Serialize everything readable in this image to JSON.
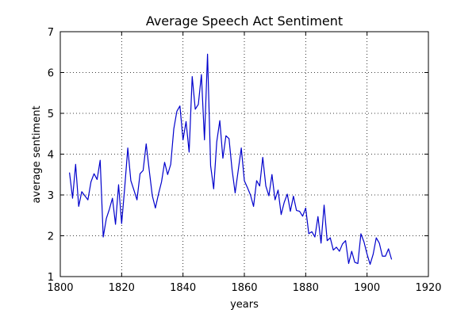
{
  "chart_data": {
    "type": "line",
    "title": "Average Speech Act Sentiment",
    "xlabel": "years",
    "ylabel": "average sentiment",
    "xlim": [
      1800,
      1920
    ],
    "ylim": [
      1,
      7
    ],
    "xticks": [
      1800,
      1820,
      1840,
      1860,
      1880,
      1900,
      1920
    ],
    "yticks": [
      1,
      2,
      3,
      4,
      5,
      6,
      7
    ],
    "x_tick_labels": [
      "1800",
      "1820",
      "1840",
      "1860",
      "1880",
      "1900",
      "1920"
    ],
    "y_tick_labels": [
      "1",
      "2",
      "3",
      "4",
      "5",
      "6",
      "7"
    ],
    "grid": true,
    "grid_style": "dotted",
    "line_color": "#0000cc",
    "series": [
      {
        "x": [
          1803,
          1804,
          1805,
          1806,
          1807,
          1808,
          1809,
          1810,
          1811,
          1812,
          1813,
          1814,
          1815,
          1816,
          1817,
          1818,
          1819,
          1820,
          1821,
          1822,
          1823,
          1824,
          1825,
          1826,
          1827,
          1828,
          1829,
          1830,
          1831,
          1832,
          1833,
          1834,
          1835,
          1836,
          1837,
          1838,
          1839,
          1840,
          1841,
          1842,
          1843,
          1844,
          1845,
          1846,
          1847,
          1848,
          1849,
          1850,
          1851,
          1852,
          1853,
          1854,
          1855,
          1856,
          1857,
          1858,
          1859,
          1860,
          1861,
          1862,
          1863,
          1864,
          1865,
          1866,
          1867,
          1868,
          1869,
          1870,
          1871,
          1872,
          1873,
          1874,
          1875,
          1876,
          1877,
          1878,
          1879,
          1880,
          1881,
          1882,
          1883,
          1884,
          1885,
          1886,
          1887,
          1888,
          1889,
          1890,
          1891,
          1892,
          1893,
          1894,
          1895,
          1896,
          1897,
          1898,
          1899,
          1900,
          1901,
          1902,
          1903,
          1904,
          1905,
          1906,
          1907,
          1908
        ],
        "y": [
          3.55,
          2.92,
          3.75,
          2.72,
          3.08,
          2.98,
          2.88,
          3.32,
          3.52,
          3.38,
          3.85,
          1.97,
          2.42,
          2.65,
          2.92,
          2.28,
          3.25,
          2.3,
          3.18,
          4.15,
          3.35,
          3.12,
          2.88,
          3.52,
          3.6,
          4.25,
          3.6,
          2.98,
          2.68,
          3.02,
          3.32,
          3.8,
          3.5,
          3.75,
          4.62,
          5.05,
          5.18,
          4.35,
          4.8,
          4.05,
          5.9,
          5.1,
          5.22,
          5.95,
          4.35,
          6.45,
          3.72,
          3.15,
          4.3,
          4.82,
          3.9,
          4.45,
          4.38,
          3.62,
          3.05,
          3.6,
          4.15,
          3.35,
          3.18,
          3.0,
          2.72,
          3.35,
          3.22,
          3.92,
          3.22,
          2.98,
          3.5,
          2.88,
          3.12,
          2.52,
          2.82,
          3.02,
          2.6,
          2.97,
          2.62,
          2.6,
          2.48,
          2.68,
          2.05,
          2.1,
          1.97,
          2.47,
          1.82,
          2.75,
          1.88,
          1.95,
          1.65,
          1.72,
          1.62,
          1.8,
          1.88,
          1.32,
          1.62,
          1.35,
          1.32,
          2.05,
          1.85,
          1.55,
          1.3,
          1.55,
          1.95,
          1.82,
          1.5,
          1.5,
          1.68,
          1.42
        ]
      }
    ]
  }
}
